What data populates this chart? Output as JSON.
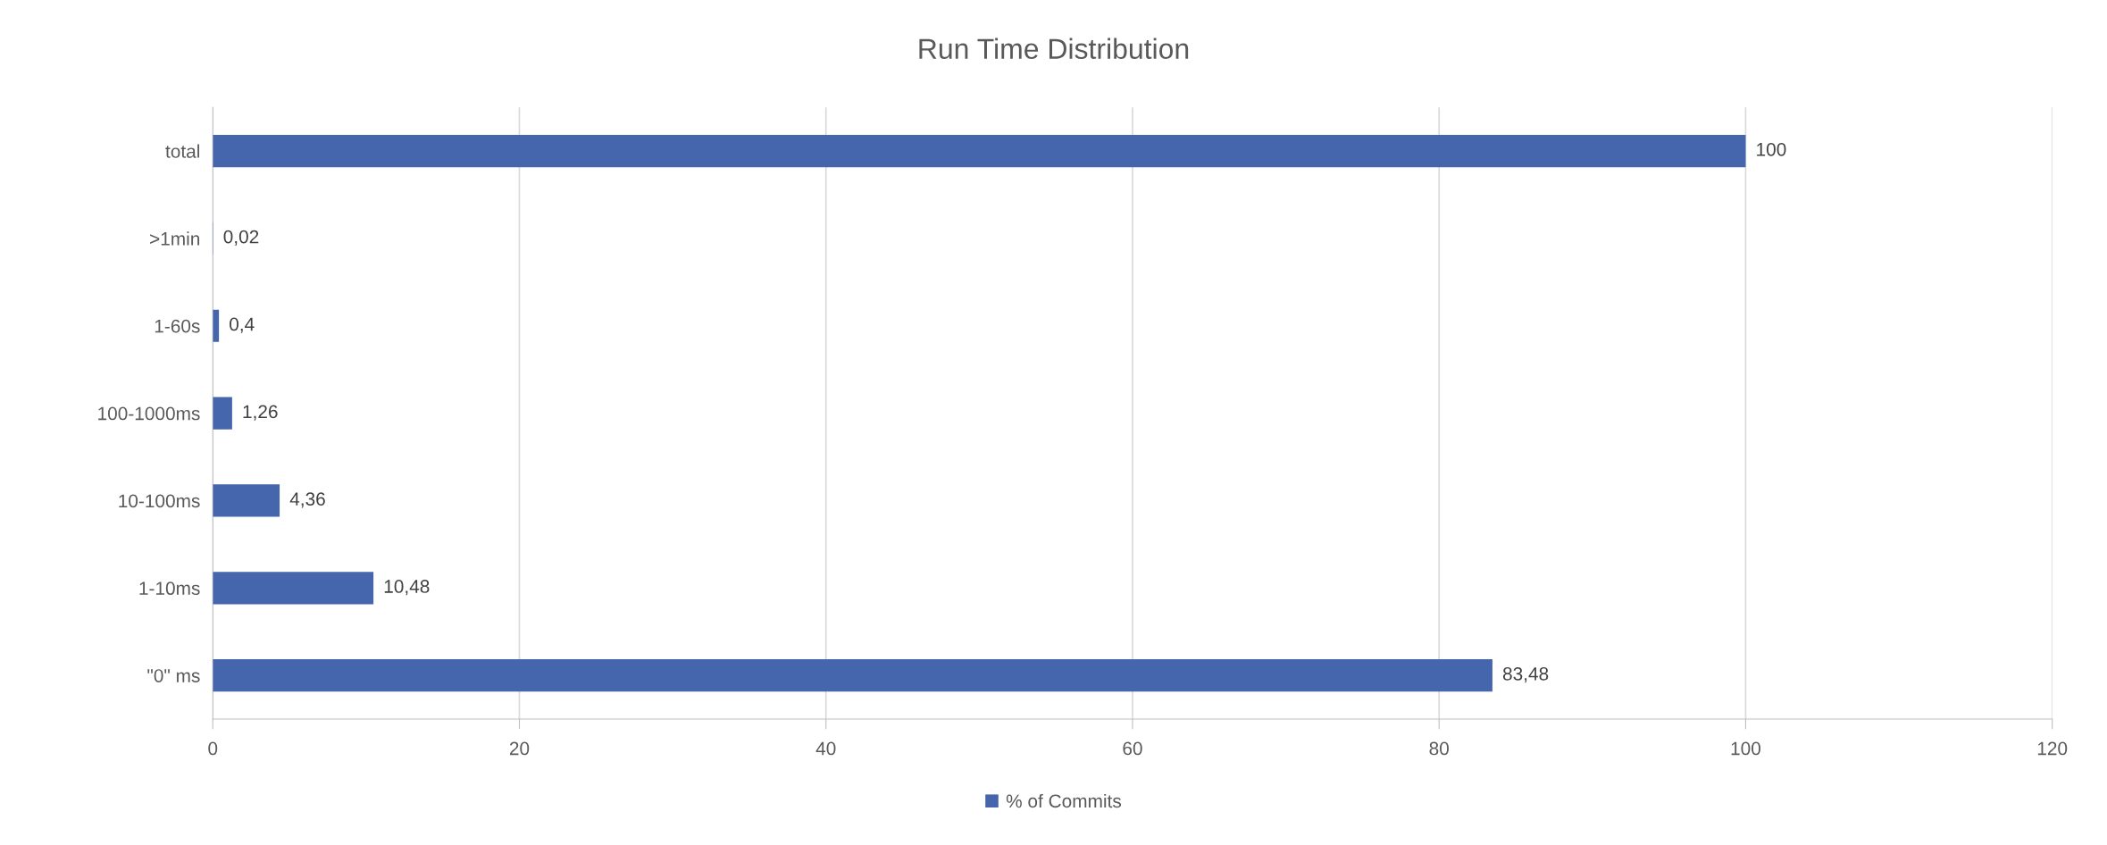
{
  "chart_data": {
    "type": "bar",
    "orientation": "horizontal",
    "title": "Run Time Distribution",
    "categories": [
      "total",
      ">1min",
      "1-60s",
      "100-1000ms",
      "10-100ms",
      "1-10ms",
      "\"0\" ms"
    ],
    "series": [
      {
        "name": "% of Commits",
        "color": "#4565ad",
        "values": [
          100,
          0.02,
          0.4,
          1.26,
          4.36,
          10.48,
          83.48
        ],
        "value_labels": [
          "100",
          "0,02",
          "0,4",
          "1,26",
          "4,36",
          "10,48",
          "83,48"
        ]
      }
    ],
    "xlim": [
      0,
      120
    ],
    "xticks": [
      0,
      20,
      40,
      60,
      80,
      100,
      120
    ],
    "grid": "x",
    "legend": "bottom"
  }
}
